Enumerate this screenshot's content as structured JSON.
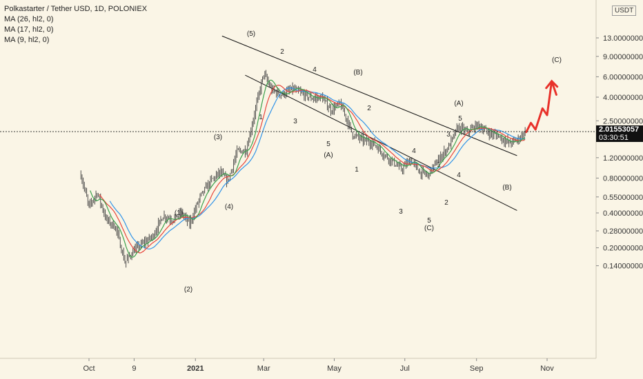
{
  "legend": {
    "title": "Polkastarter / Tether USD, 1D, POLONIEX",
    "ma1": "MA (26, hl2, 0)",
    "ma2": "MA (17, hl2, 0)",
    "ma3": "MA (9, hl2, 0)"
  },
  "price_axis": {
    "unit": "USDT",
    "current_price": "2.01553057",
    "countdown": "03:30:51"
  },
  "colors": {
    "background": "#faf5e6",
    "candle": "#3a3a3a",
    "ma_slow": "#2f93e8",
    "ma_mid": "#e8453c",
    "ma_fast": "#3aa04a",
    "projection": "#e8312a",
    "channel": "#111111"
  },
  "chart_data": {
    "type": "candlestick",
    "scale": "log",
    "y_ticks": [
      "13.00000000",
      "9.00000000",
      "6.00000000",
      "4.00000000",
      "2.50000000",
      "1.20000000",
      "0.80000000",
      "0.55000000",
      "0.40000000",
      "0.28000000",
      "0.20000000",
      "0.14000000"
    ],
    "y_tick_values": [
      13,
      9,
      6,
      4,
      2.5,
      1.2,
      0.8,
      0.55,
      0.4,
      0.28,
      0.2,
      0.14
    ],
    "x_ticks": [
      "Oct",
      "9",
      "2021",
      "Mar",
      "May",
      "Jul",
      "Sep",
      "Nov"
    ],
    "x_tick_dates": [
      "2020-10-01",
      "2020-11-09",
      "2021-01-01",
      "2021-03-01",
      "2021-05-01",
      "2021-07-01",
      "2021-09-01",
      "2021-11-01"
    ],
    "last_price": 2.01553057,
    "wave_labels": [
      "(1)",
      "(2)",
      "(3)",
      "(4)",
      "(5)",
      "1",
      "2",
      "3",
      "4",
      "5",
      "(A)",
      "(B)",
      "1",
      "2",
      "3",
      "4",
      "5",
      "(C)",
      "1",
      "2",
      "3",
      "4",
      "5",
      "(A)",
      "(B)",
      "(C)"
    ],
    "price_path": [
      [
        "2020-09-24",
        0.85
      ],
      [
        "2020-10-01",
        0.45
      ],
      [
        "2020-10-08",
        0.6
      ],
      [
        "2020-10-16",
        0.35
      ],
      [
        "2020-10-24",
        0.3
      ],
      [
        "2020-11-01",
        0.15
      ],
      [
        "2020-11-09",
        0.19
      ],
      [
        "2020-11-17",
        0.22
      ],
      [
        "2020-11-25",
        0.25
      ],
      [
        "2020-12-04",
        0.38
      ],
      [
        "2020-12-12",
        0.35
      ],
      [
        "2020-12-20",
        0.4
      ],
      [
        "2020-12-27",
        0.32
      ],
      [
        "2021-01-05",
        0.55
      ],
      [
        "2021-01-14",
        0.75
      ],
      [
        "2021-01-22",
        0.9
      ],
      [
        "2021-01-29",
        0.75
      ],
      [
        "2021-02-06",
        1.35
      ],
      [
        "2021-02-14",
        1.4
      ],
      [
        "2021-02-22",
        3.2
      ],
      [
        "2021-03-01",
        6.4
      ],
      [
        "2021-03-08",
        4.6
      ],
      [
        "2021-03-17",
        4.2
      ],
      [
        "2021-03-26",
        4.7
      ],
      [
        "2021-04-03",
        4.3
      ],
      [
        "2021-04-12",
        3.9
      ],
      [
        "2021-04-20",
        4.0
      ],
      [
        "2021-04-28",
        3.1
      ],
      [
        "2021-05-06",
        3.5
      ],
      [
        "2021-05-11",
        2.7
      ],
      [
        "2021-05-17",
        1.9
      ],
      [
        "2021-05-26",
        1.7
      ],
      [
        "2021-06-04",
        1.6
      ],
      [
        "2021-06-12",
        1.3
      ],
      [
        "2021-06-21",
        1.1
      ],
      [
        "2021-06-28",
        0.95
      ],
      [
        "2021-07-06",
        1.15
      ],
      [
        "2021-07-14",
        0.9
      ],
      [
        "2021-07-21",
        0.85
      ],
      [
        "2021-07-30",
        1.15
      ],
      [
        "2021-08-08",
        1.5
      ],
      [
        "2021-08-16",
        2.2
      ],
      [
        "2021-08-24",
        2.0
      ],
      [
        "2021-09-02",
        2.3
      ],
      [
        "2021-09-10",
        2.0
      ],
      [
        "2021-09-20",
        1.85
      ],
      [
        "2021-09-29",
        1.6
      ],
      [
        "2021-10-06",
        1.7
      ],
      [
        "2021-10-13",
        2.0
      ]
    ],
    "projection_path": [
      [
        "2021-10-14",
        2.0
      ],
      [
        "2021-10-18",
        2.4
      ],
      [
        "2021-10-22",
        2.1
      ],
      [
        "2021-10-28",
        3.2
      ],
      [
        "2021-11-01",
        2.8
      ],
      [
        "2021-11-05",
        5.5
      ],
      [
        "2021-11-09",
        4.2
      ]
    ],
    "channel_lines": [
      {
        "from": [
          "2021-01-24",
          13.5
        ],
        "to": [
          "2021-10-06",
          1.25
        ]
      },
      {
        "from": [
          "2021-02-13",
          6.2
        ],
        "to": [
          "2021-10-06",
          0.42
        ]
      }
    ]
  }
}
